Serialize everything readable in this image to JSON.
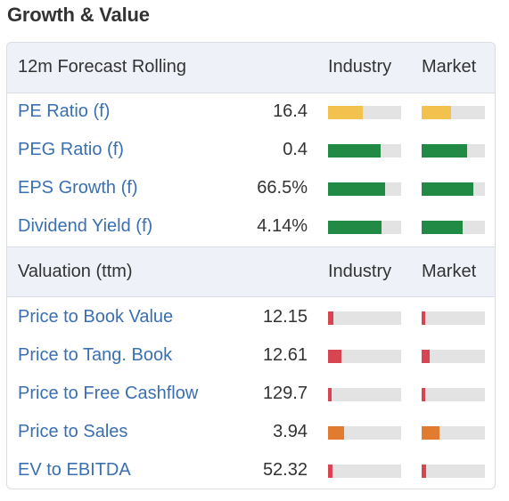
{
  "page_title": "Growth & Value",
  "colors": {
    "yellow": "#f2c14e",
    "green": "#218a45",
    "red": "#d64550",
    "orange": "#e07b2f",
    "track": "#e3e3e3",
    "link": "#3a6fb0"
  },
  "sections": [
    {
      "header": "12m Forecast Rolling",
      "col_industry": "Industry",
      "col_market": "Market",
      "rows": [
        {
          "label": "PE Ratio (f)",
          "value": "16.4",
          "industry_level": 0.48,
          "industry_color": "yellow",
          "market_level": 0.46,
          "market_color": "yellow"
        },
        {
          "label": "PEG Ratio (f)",
          "value": "0.4",
          "industry_level": 0.72,
          "industry_color": "green",
          "market_level": 0.72,
          "market_color": "green"
        },
        {
          "label": "EPS Growth (f)",
          "value": "66.5%",
          "industry_level": 0.78,
          "industry_color": "green",
          "market_level": 0.82,
          "market_color": "green"
        },
        {
          "label": "Dividend Yield (f)",
          "value": "4.14%",
          "industry_level": 0.73,
          "industry_color": "green",
          "market_level": 0.65,
          "market_color": "green"
        }
      ]
    },
    {
      "header": "Valuation (ttm)",
      "col_industry": "Industry",
      "col_market": "Market",
      "rows": [
        {
          "label": "Price to Book Value",
          "value": "12.15",
          "industry_level": 0.07,
          "industry_color": "red",
          "market_level": 0.06,
          "market_color": "red"
        },
        {
          "label": "Price to Tang. Book",
          "value": "12.61",
          "industry_level": 0.18,
          "industry_color": "red",
          "market_level": 0.13,
          "market_color": "red"
        },
        {
          "label": "Price to Free Cashflow",
          "value": "129.7",
          "industry_level": 0.05,
          "industry_color": "red",
          "market_level": 0.05,
          "market_color": "red"
        },
        {
          "label": "Price to Sales",
          "value": "3.94",
          "industry_level": 0.22,
          "industry_color": "orange",
          "market_level": 0.28,
          "market_color": "orange"
        },
        {
          "label": "EV to EBITDA",
          "value": "52.32",
          "industry_level": 0.06,
          "industry_color": "red",
          "market_level": 0.07,
          "market_color": "red"
        }
      ]
    }
  ]
}
